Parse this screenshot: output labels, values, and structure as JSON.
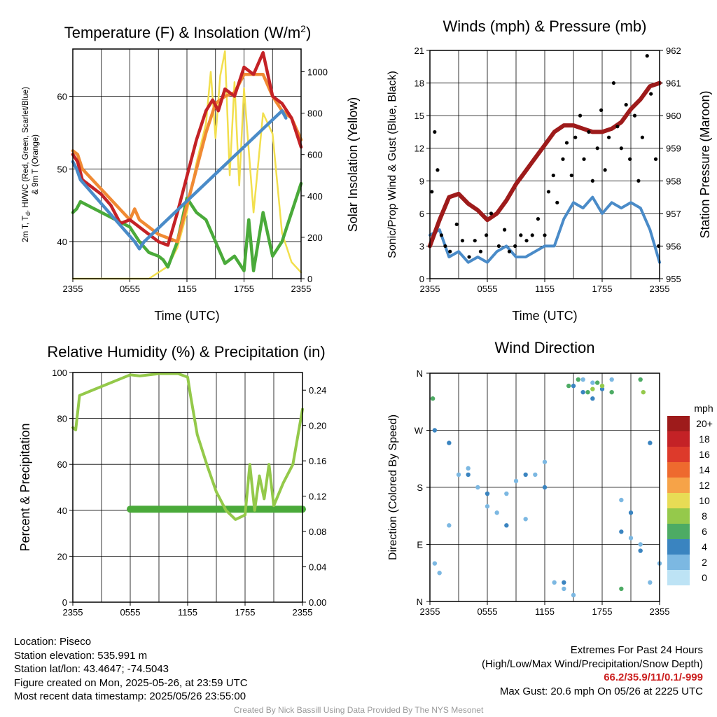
{
  "charts": {
    "temperature": {
      "title": "Temperature (F) & Insolation (W/m",
      "title_sup": "2",
      "title_end": ")",
      "xlabel": "Time (UTC)",
      "ylabel_left_line1": "2m T, T",
      "ylabel_left_sub": "d",
      "ylabel_left_line1_end": ", HI/WC (Red, Green, Scarlet/Blue)",
      "ylabel_left_line2": "& 9m T (Orange)",
      "ylabel_right": "Solar Insolation (Yellow)"
    },
    "winds": {
      "title": "Winds (mph) & Pressure (mb)",
      "xlabel": "Time (UTC)",
      "ylabel_left": "Sonic/Prop Wind & Gust (Blue, Black)",
      "ylabel_right": "Station Pressure (Maroon)"
    },
    "humidity": {
      "title": "Relative Humidity (%) & Precipitation (in)",
      "ylabel_left": "Percent & Precipitation"
    },
    "direction": {
      "title": "Wind Direction",
      "ylabel_left": "Direction (Colored By Speed)",
      "legend_title": "mph",
      "legend_labels": [
        "20+",
        "18",
        "16",
        "14",
        "12",
        "10",
        "8",
        "6",
        "4",
        "2",
        "0"
      ],
      "legend_colors": [
        "#9e1b1b",
        "#c42226",
        "#dd3a2b",
        "#ee6a2e",
        "#f6a348",
        "#e8dc55",
        "#95c94b",
        "#4dab64",
        "#3a84c0",
        "#7cb8e2",
        "#bde3f5"
      ]
    }
  },
  "chart_data": [
    {
      "type": "line",
      "id": "temperature",
      "x_ticks": [
        "2355",
        "0555",
        "1155",
        "1755",
        "2355"
      ],
      "y_left_ticks": [
        40,
        50,
        60
      ],
      "y_left_range": [
        34.9,
        66.5
      ],
      "y_right_ticks": [
        0,
        200,
        400,
        600,
        800,
        1000
      ],
      "y_right_range": [
        0,
        1110
      ],
      "series": [
        {
          "color": "#c42226",
          "axis": "left",
          "x": [
            0,
            0.5,
            1,
            2,
            3,
            4,
            5,
            6,
            7,
            8,
            9,
            10,
            11,
            12,
            13,
            14,
            14.7,
            15.3,
            16,
            17,
            18,
            19,
            20,
            21,
            22,
            23,
            24
          ],
          "y": [
            52,
            51,
            48.5,
            47.5,
            46.5,
            45,
            42.5,
            43,
            42,
            41,
            40,
            39.5,
            44,
            49,
            54,
            58,
            59.5,
            58,
            61,
            60,
            64,
            63,
            66,
            60,
            59,
            57,
            53
          ]
        },
        {
          "color": "#f08a33",
          "axis": "left",
          "x": [
            0,
            0.5,
            1,
            6,
            6.5,
            7,
            8,
            9,
            10,
            11,
            12,
            13,
            14,
            15,
            16,
            17,
            18,
            19,
            20,
            21,
            22,
            23,
            24
          ],
          "y": [
            52.5,
            52,
            50,
            43,
            44.5,
            43,
            42,
            41,
            40.5,
            40,
            45,
            50,
            55,
            59,
            60,
            60.5,
            63,
            63,
            63,
            60,
            58,
            57,
            54
          ]
        },
        {
          "color": "#4aaa3a",
          "axis": "left",
          "x": [
            0,
            0.4,
            0.8,
            6,
            7,
            8,
            9,
            9.5,
            10,
            11,
            12,
            13,
            14,
            15,
            16,
            17,
            18,
            18.5,
            19,
            20,
            21,
            22,
            23,
            24
          ],
          "y": [
            44,
            44.5,
            45.5,
            42,
            40,
            38.5,
            38,
            37.5,
            36.5,
            40,
            46,
            44,
            43,
            40,
            37,
            38,
            36,
            43,
            36,
            44,
            38,
            40,
            44,
            48
          ]
        },
        {
          "color": "#4a8bc8",
          "axis": "left",
          "x": [
            0,
            0.4,
            0.8,
            6.5,
            7,
            7.5,
            22,
            22.4
          ],
          "y": [
            51,
            50,
            48.5,
            40,
            39,
            40,
            58,
            57
          ]
        },
        {
          "color": "#f2df4e",
          "axis": "right",
          "x": [
            0,
            6,
            8,
            10,
            11,
            12,
            13,
            14,
            14.5,
            15,
            15.5,
            16,
            16.5,
            17,
            17.5,
            18,
            19,
            20,
            21,
            22,
            23,
            24
          ],
          "y": [
            0,
            0,
            0,
            60,
            150,
            320,
            560,
            750,
            1000,
            680,
            980,
            1100,
            500,
            950,
            450,
            920,
            320,
            800,
            700,
            220,
            80,
            30
          ]
        }
      ]
    },
    {
      "type": "line",
      "id": "winds",
      "x_ticks": [
        "2355",
        "0555",
        "1155",
        "1755",
        "2355"
      ],
      "y_left_ticks": [
        0,
        3,
        6,
        9,
        12,
        15,
        18,
        21
      ],
      "y_left_range": [
        0,
        21
      ],
      "y_right_ticks": [
        955,
        956,
        957,
        958,
        959,
        960,
        961,
        962
      ],
      "y_right_range": [
        955,
        962
      ],
      "series": [
        {
          "color": "#9e1b1b",
          "axis": "right",
          "x": [
            0,
            1,
            2,
            3,
            4,
            5,
            6,
            7,
            8,
            9,
            10,
            11,
            12,
            13,
            14,
            15,
            16,
            17,
            18,
            19,
            20,
            21,
            22,
            23,
            24
          ],
          "y": [
            956.0,
            956.8,
            957.5,
            957.6,
            957.3,
            957.1,
            956.8,
            957.0,
            957.4,
            957.9,
            958.3,
            958.7,
            959.1,
            959.5,
            959.7,
            959.7,
            959.6,
            959.5,
            959.5,
            959.6,
            959.8,
            960.2,
            960.5,
            960.9,
            961.0
          ]
        },
        {
          "color": "#4a8bc8",
          "axis": "left",
          "x": [
            0,
            1,
            2,
            3,
            4,
            5,
            6,
            7,
            8,
            9,
            10,
            11,
            12,
            13,
            14,
            15,
            16,
            17,
            18,
            19,
            20,
            21,
            22,
            23,
            24
          ],
          "y": [
            4,
            4.5,
            2,
            2.5,
            1.5,
            2,
            1.5,
            2.5,
            3,
            2,
            2,
            2.5,
            3,
            3,
            5.5,
            7,
            6.5,
            7.5,
            6,
            7,
            6.5,
            7,
            6.5,
            4.5,
            1.5
          ]
        },
        {
          "color": "#000000",
          "axis": "left",
          "type": "scatter",
          "x": [
            0.2,
            0.5,
            0.8,
            1.2,
            1.6,
            2.1,
            2.8,
            3.4,
            4.1,
            4.7,
            5.3,
            5.9,
            6.4,
            7.2,
            7.8,
            8.3,
            8.9,
            9.5,
            10.1,
            10.7,
            11.3,
            12.0,
            12.4,
            12.9,
            13.3,
            13.9,
            14.3,
            14.8,
            15.2,
            15.7,
            16.1,
            16.6,
            17.0,
            17.5,
            17.9,
            18.3,
            18.7,
            19.2,
            19.6,
            20.0,
            20.5,
            20.9,
            21.4,
            21.8,
            22.2,
            22.7,
            23.1,
            23.6,
            23.9
          ],
          "y": [
            8,
            13.5,
            10,
            4,
            3,
            2.5,
            5,
            3.5,
            2,
            3.5,
            2.5,
            4,
            6,
            3,
            4.5,
            2.5,
            3,
            4,
            3.5,
            4,
            5.5,
            4,
            8,
            9.5,
            7,
            11,
            12.5,
            9.5,
            13,
            15,
            11,
            13.5,
            9,
            12,
            15.5,
            10,
            13,
            18,
            14,
            12,
            16,
            11,
            15,
            9,
            13,
            20.5,
            17,
            11,
            3
          ]
        }
      ]
    },
    {
      "type": "line",
      "id": "humidity",
      "x_ticks": [
        "2355",
        "0555",
        "1155",
        "1755",
        "2355"
      ],
      "y_left_ticks": [
        0,
        20,
        40,
        60,
        80,
        100
      ],
      "y_left_range": [
        0,
        100
      ],
      "y_right_ticks": [
        "0.00",
        "0.04",
        "0.08",
        "0.12",
        "0.16",
        "0.20",
        "0.24"
      ],
      "y_right_range": [
        0,
        0.26
      ],
      "series": [
        {
          "color": "#94c94a",
          "axis": "left",
          "x": [
            0,
            0.3,
            0.7,
            6,
            7,
            8,
            9,
            10,
            11,
            12,
            12.3,
            13,
            14,
            15,
            16,
            17,
            18,
            18.5,
            19,
            19.5,
            20,
            20.5,
            21,
            22,
            23,
            24
          ],
          "y": [
            76,
            75,
            90,
            99,
            98.5,
            99,
            99.5,
            99.5,
            99.5,
            98,
            90,
            73,
            60,
            48,
            40,
            36,
            38,
            60,
            40,
            55,
            45,
            60,
            42,
            52,
            60,
            84
          ]
        },
        {
          "color": "#4aaa3a",
          "axis": "left",
          "x": [
            6,
            24
          ],
          "y": [
            40.5,
            40.5
          ]
        }
      ]
    },
    {
      "type": "scatter",
      "id": "direction",
      "x_ticks": [
        "2355",
        "0555",
        "1155",
        "1755",
        "2355"
      ],
      "y_ticks": [
        "N",
        "W",
        "S",
        "E",
        "N"
      ],
      "y_range": [
        0,
        360
      ],
      "series": [
        {
          "color": "#7cb8e2",
          "x": [
            0.5,
            1,
            2,
            3,
            4,
            5,
            6,
            7,
            8,
            9,
            10,
            11,
            12,
            13,
            14,
            15,
            16,
            17,
            18,
            19,
            20,
            21,
            22,
            23,
            24
          ],
          "y": [
            60,
            45,
            120,
            200,
            210,
            180,
            150,
            140,
            170,
            190,
            130,
            200,
            220,
            30,
            20,
            10,
            350,
            345,
            340,
            350,
            160,
            100,
            90,
            30,
            60
          ]
        },
        {
          "color": "#3a84c0",
          "x": [
            0.5,
            2,
            4,
            6,
            8,
            10,
            12,
            14,
            15,
            16,
            17,
            18,
            20,
            21,
            22,
            23
          ],
          "y": [
            270,
            250,
            200,
            170,
            120,
            200,
            180,
            30,
            340,
            330,
            320,
            335,
            110,
            140,
            80,
            250
          ]
        },
        {
          "color": "#4dab64",
          "x": [
            0.3,
            14.5,
            15.5,
            16.5,
            17.5,
            19,
            20,
            22
          ],
          "y": [
            320,
            340,
            350,
            330,
            345,
            330,
            20,
            350
          ]
        },
        {
          "color": "#95c94b",
          "x": [
            17,
            18,
            22.3
          ],
          "y": [
            335,
            340,
            330
          ]
        }
      ]
    }
  ],
  "footer": {
    "location": "Location: Piseco",
    "elevation": "Station elevation: 535.991 m",
    "latlon": "Station lat/lon: 43.4647; -74.5043",
    "created": "Figure created on Mon, 2025-05-26, at 23:59 UTC",
    "recent": "Most recent data timestamp: 2025/05/26 23:55:00",
    "extremes_title": "Extremes For Past 24 Hours",
    "extremes_sub": "(High/Low/Max Wind/Precipitation/Snow Depth)",
    "extremes_values": "66.2/35.9/11/0.1/-999",
    "max_gust": "Max Gust: 20.6 mph On 05/26 at 2225 UTC",
    "credit": "Created By Nick Bassill Using Data Provided By The NYS Mesonet"
  }
}
